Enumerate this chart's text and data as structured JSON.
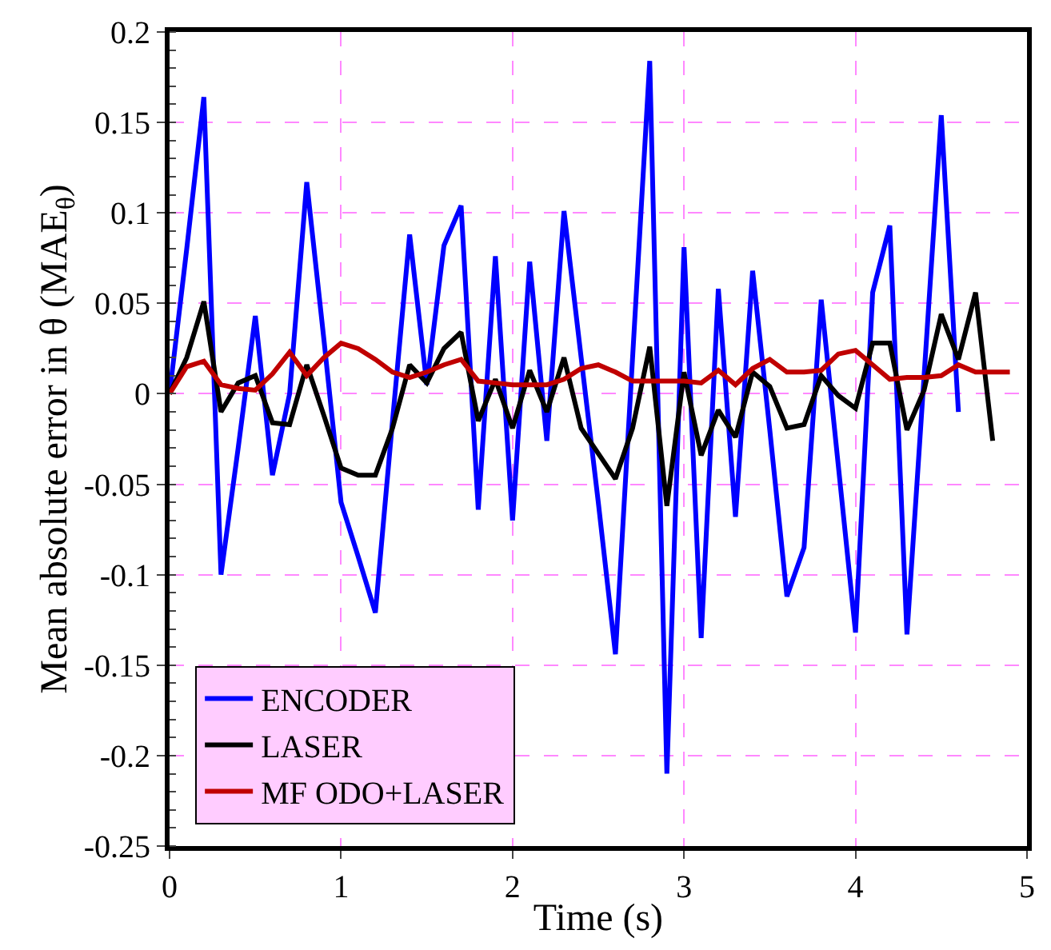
{
  "chart_data": {
    "type": "line",
    "xlabel": "Time (s)",
    "ylabel": "Mean absolute error in θ (MAE$_{θ}$)",
    "xlim": [
      0,
      5
    ],
    "xticks": [
      0,
      1,
      2,
      3,
      4,
      5
    ],
    "ylim": [
      -0.25,
      0.2
    ],
    "yticks": [
      -0.25,
      -0.2,
      -0.15,
      -0.1,
      -0.05,
      0,
      0.05,
      0.1,
      0.15,
      0.2
    ],
    "grid": true,
    "legend": "bottom left",
    "marker": "none",
    "line_style": "solid",
    "series": [
      {
        "name": "ENCODER",
        "color": "#0000ff",
        "x": [
          0,
          0.1,
          0.2,
          0.3,
          0.4,
          0.5,
          0.6,
          0.7,
          0.8,
          0.9,
          1,
          1.1,
          1.2,
          1.3,
          1.4,
          1.5,
          1.6,
          1.7,
          1.8,
          1.9,
          2,
          2.1,
          2.2,
          2.3,
          2.4,
          2.5,
          2.6,
          2.7,
          2.8,
          2.9,
          3,
          3.1,
          3.2,
          3.3,
          3.4,
          3.5,
          3.6,
          3.7,
          3.8,
          3.9,
          4,
          4.1,
          4.2,
          4.3,
          4.4,
          4.5,
          4.6
        ],
        "values": [
          0,
          0.08,
          0.164,
          -0.1,
          -0.03,
          0.043,
          -0.045,
          0,
          0.117,
          0.03,
          -0.06,
          -0.09,
          -0.121,
          -0.015,
          0.088,
          0.005,
          0.082,
          0.104,
          -0.064,
          0.076,
          -0.07,
          0.073,
          -0.026,
          0.101,
          0.02,
          -0.06,
          -0.144,
          0.02,
          0.184,
          -0.21,
          0.081,
          -0.135,
          0.058,
          -0.068,
          0.068,
          -0.02,
          -0.112,
          -0.085,
          0.052,
          -0.04,
          -0.132,
          0.056,
          0.093,
          -0.133,
          0.01,
          0.154,
          -0.01
        ]
      },
      {
        "name": "LASER",
        "color": "#000000",
        "x": [
          0,
          0.1,
          0.2,
          0.3,
          0.4,
          0.5,
          0.6,
          0.7,
          0.8,
          0.9,
          1,
          1.1,
          1.2,
          1.3,
          1.4,
          1.5,
          1.6,
          1.7,
          1.8,
          1.9,
          2,
          2.1,
          2.2,
          2.3,
          2.4,
          2.5,
          2.6,
          2.7,
          2.8,
          2.9,
          3,
          3.1,
          3.2,
          3.3,
          3.4,
          3.5,
          3.6,
          3.7,
          3.8,
          3.9,
          4,
          4.1,
          4.2,
          4.3,
          4.4,
          4.5,
          4.6,
          4.7,
          4.8
        ],
        "values": [
          0,
          0.02,
          0.051,
          -0.01,
          0.006,
          0.01,
          -0.016,
          -0.017,
          0.016,
          -0.012,
          -0.041,
          -0.045,
          -0.045,
          -0.019,
          0.016,
          0.006,
          0.025,
          0.034,
          -0.015,
          0.008,
          -0.019,
          0.013,
          -0.01,
          0.02,
          -0.019,
          -0.033,
          -0.047,
          -0.019,
          0.026,
          -0.062,
          0.012,
          -0.034,
          -0.009,
          -0.024,
          0.012,
          0.004,
          -0.019,
          -0.017,
          0.01,
          -0.001,
          -0.008,
          0.028,
          0.028,
          -0.02,
          0.002,
          0.044,
          0.019,
          0.056,
          -0.026
        ]
      },
      {
        "name": "MF ODO+LASER",
        "color": "#c00000",
        "x": [
          0,
          0.1,
          0.2,
          0.3,
          0.4,
          0.5,
          0.6,
          0.7,
          0.8,
          0.9,
          1,
          1.1,
          1.2,
          1.3,
          1.4,
          1.5,
          1.6,
          1.7,
          1.8,
          1.9,
          2,
          2.1,
          2.2,
          2.3,
          2.4,
          2.5,
          2.6,
          2.7,
          2.8,
          2.9,
          3,
          3.1,
          3.2,
          3.3,
          3.4,
          3.5,
          3.6,
          3.7,
          3.8,
          3.9,
          4,
          4.1,
          4.2,
          4.3,
          4.4,
          4.5,
          4.6,
          4.7,
          4.8,
          4.9
        ],
        "values": [
          0,
          0.015,
          0.018,
          0.005,
          0.003,
          0.002,
          0.011,
          0.023,
          0.01,
          0.02,
          0.028,
          0.025,
          0.019,
          0.012,
          0.009,
          0.012,
          0.016,
          0.019,
          0.007,
          0.006,
          0.005,
          0.005,
          0.005,
          0.008,
          0.014,
          0.016,
          0.012,
          0.007,
          0.007,
          0.007,
          0.007,
          0.006,
          0.013,
          0.005,
          0.014,
          0.019,
          0.012,
          0.012,
          0.013,
          0.022,
          0.024,
          0.016,
          0.008,
          0.009,
          0.009,
          0.01,
          0.016,
          0.012,
          0.012,
          0.012
        ]
      }
    ]
  }
}
